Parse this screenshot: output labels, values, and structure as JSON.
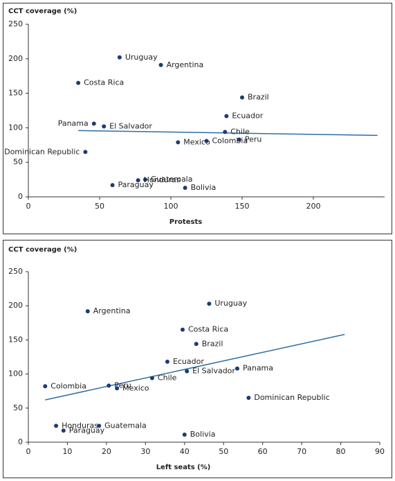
{
  "chart_data": [
    {
      "type": "scatter",
      "y_label": "CCT coverage (%)",
      "x_label": "Protests",
      "labels": [
        "Uruguay",
        "Argentina",
        "Costa Rica",
        "Brazil",
        "Ecuador",
        "Panama",
        "El Salvador",
        "Chile",
        "Peru",
        "Mexico",
        "Colombia",
        "Dominican Republic",
        "Guatemala",
        "Honduras",
        "Paraguay",
        "Bolivia"
      ],
      "x": [
        64,
        93,
        35,
        150,
        139,
        46,
        53,
        138,
        148,
        105,
        125,
        40,
        82,
        77,
        59,
        110
      ],
      "values": [
        202,
        191,
        165,
        144,
        117,
        106,
        102,
        94,
        83,
        79,
        81,
        65,
        25,
        24,
        17,
        13
      ],
      "color": "#1f3b73",
      "trend_color": "#2e6da4",
      "trendline": {
        "x": [
          35,
          245
        ],
        "y": [
          96,
          89
        ]
      },
      "xlim": [
        0,
        250
      ],
      "xticks": [
        0,
        50,
        100,
        150,
        200
      ],
      "ylim": [
        0,
        250
      ],
      "yticks": [
        0,
        50,
        100,
        150,
        200,
        250
      ]
    },
    {
      "type": "scatter",
      "y_label": "CCT coverage (%)",
      "x_label": "Left seats (%)",
      "labels": [
        "Uruguay",
        "Argentina",
        "Costa Rica",
        "Brazil",
        "Ecuador",
        "Panama",
        "El Salvador",
        "Chile",
        "Peru",
        "Mexico",
        "Colombia",
        "Dominican Republic",
        "Honduras",
        "Guatemala",
        "Paraguay",
        "Bolivia"
      ],
      "x": [
        46.3,
        15.2,
        39.5,
        43,
        35.6,
        53.5,
        40.6,
        31.7,
        20.6,
        22.7,
        4.3,
        56.4,
        7.1,
        18.1,
        9,
        40
      ],
      "values": [
        203,
        192,
        165,
        144,
        118,
        108,
        104,
        94,
        83,
        79,
        82,
        65,
        24,
        24,
        17,
        11
      ],
      "color": "#1f3b73",
      "trend_color": "#2e6da4",
      "trendline": {
        "x": [
          4.3,
          81
        ],
        "y": [
          62,
          158
        ]
      },
      "xlim": [
        0,
        90
      ],
      "xticks": [
        0,
        10,
        20,
        30,
        40,
        50,
        60,
        70,
        80,
        90
      ],
      "ylim": [
        0,
        250
      ],
      "yticks": [
        0,
        50,
        100,
        150,
        200,
        250
      ]
    }
  ]
}
